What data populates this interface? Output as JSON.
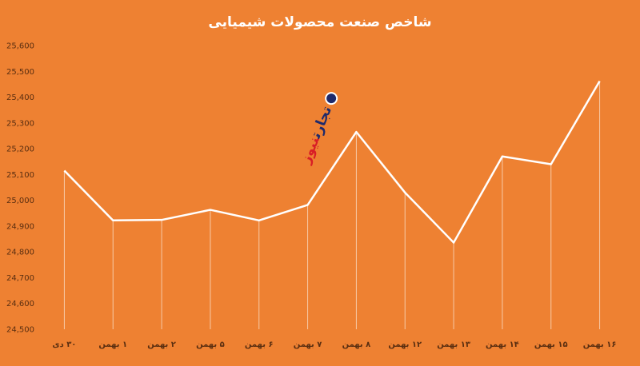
{
  "chart_data": {
    "type": "line",
    "title": "شاخص صنعت محصولات شیمیایی",
    "categories": [
      "۳۰ دی",
      "۱ بهمن",
      "۲ بهمن",
      "۵ بهمن",
      "۶ بهمن",
      "۷ بهمن",
      "۸ بهمن",
      "۱۲ بهمن",
      "۱۳ بهمن",
      "۱۴ بهمن",
      "۱۵ بهمن",
      "۱۶ بهمن"
    ],
    "values": [
      25115,
      24922,
      24924,
      24963,
      24922,
      24982,
      25265,
      25030,
      24836,
      25170,
      25140,
      25462
    ],
    "ylim": [
      24500,
      25600
    ],
    "yticks": [
      24500,
      24600,
      24700,
      24800,
      24900,
      25000,
      25100,
      25200,
      25300,
      25400,
      25500,
      25600
    ],
    "ytick_labels": [
      "24,500",
      "24,600",
      "24,700",
      "24,800",
      "24,900",
      "25,000",
      "25,100",
      "25,200",
      "25,300",
      "25,400",
      "25,500",
      "25,600"
    ],
    "line_color": "#ffffff",
    "drop_lines": true,
    "grid": false
  },
  "watermark": {
    "part1": "تجارت",
    "part2": "نیوز"
  },
  "colors": {
    "background": "#ee8132",
    "axis_text": "#5a2e10",
    "logo_blue": "#1f2a6b",
    "logo_red": "#d81e26"
  }
}
